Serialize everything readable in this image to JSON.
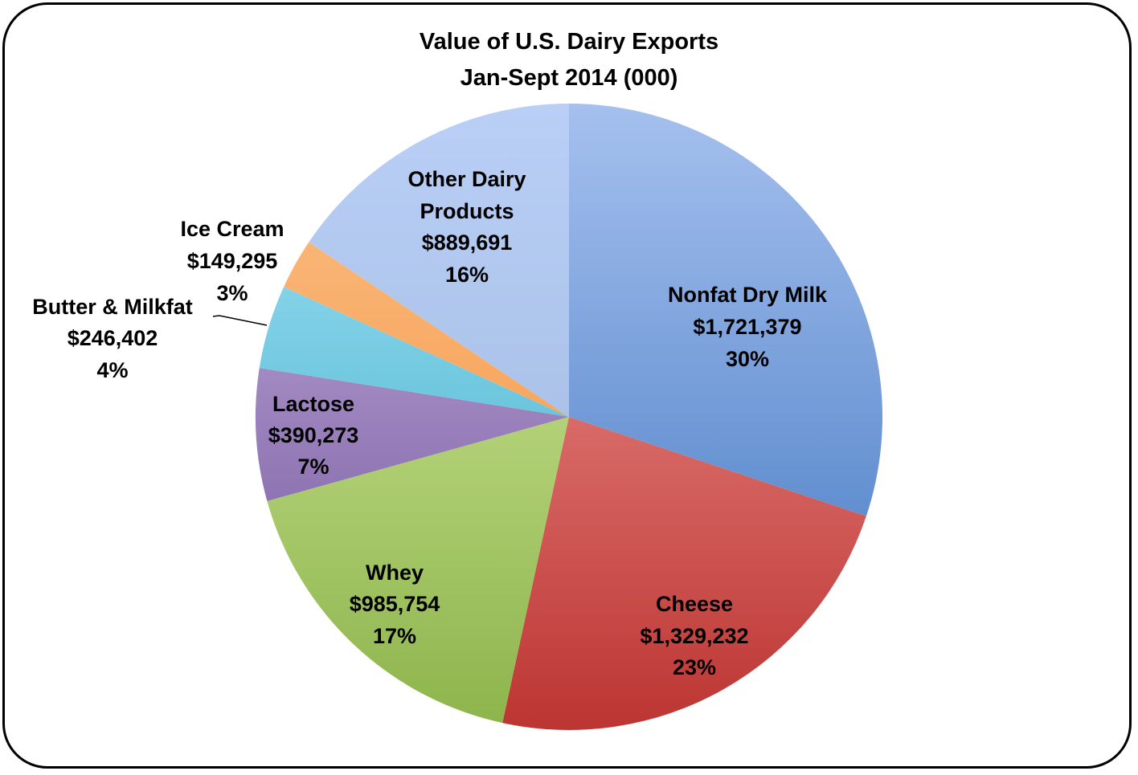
{
  "chart_data": {
    "type": "pie",
    "title": "Value of U.S. Dairy Exports",
    "subtitle": "Jan-Sept 2014 (000)",
    "slices": [
      {
        "name": "Nonfat Dry Milk",
        "value": 1721379,
        "value_label": "$1,721,379",
        "percent_label": "30%",
        "colors": [
          "#a5c0ee",
          "#3e75c0"
        ]
      },
      {
        "name": "Cheese",
        "value": 1329232,
        "value_label": "$1,329,232",
        "percent_label": "23%",
        "colors": [
          "#f4a09d",
          "#bc3532"
        ]
      },
      {
        "name": "Whey",
        "value": 985754,
        "value_label": "$985,754",
        "percent_label": "17%",
        "colors": [
          "#d9efa3",
          "#8db44c"
        ]
      },
      {
        "name": "Lactose",
        "value": 390273,
        "value_label": "$390,273",
        "percent_label": "7%",
        "colors": [
          "#c9b4e0",
          "#6c4f98"
        ]
      },
      {
        "name": "Butter & Milkfat",
        "value": 246402,
        "value_label": "$246,402",
        "percent_label": "4%",
        "colors": [
          "#a7e3f6",
          "#2ea8c4"
        ]
      },
      {
        "name": "Ice Cream",
        "value": 149295,
        "value_label": "$149,295",
        "percent_label": "3%",
        "colors": [
          "#fbc088",
          "#f38d35"
        ]
      },
      {
        "name": "Other Dairy Products",
        "value": 889691,
        "value_label": "$889,691",
        "percent_label": "16%",
        "colors": [
          "#b9cff6",
          "#9cb4dc"
        ]
      }
    ]
  }
}
